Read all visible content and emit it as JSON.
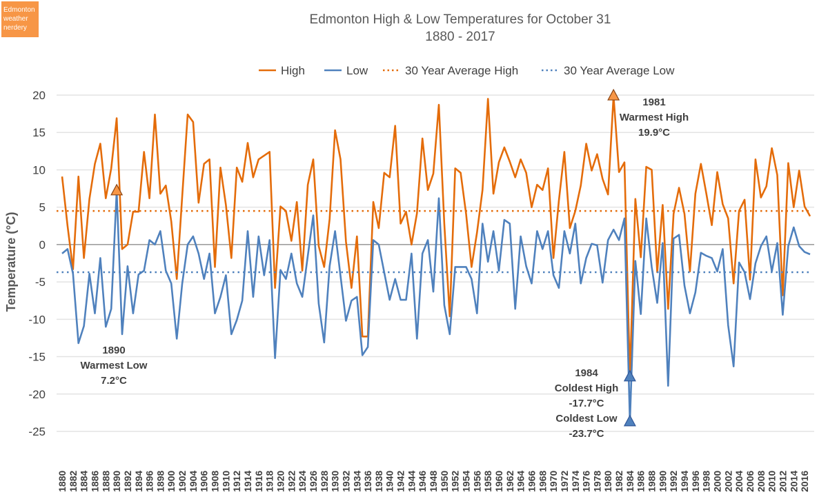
{
  "logo": {
    "text": "Edmonton weather nerdery",
    "color": "#F79646"
  },
  "chart_data": {
    "type": "line",
    "title": "Edmonton High & Low Temperatures for October 31",
    "subtitle": "1880 - 2017",
    "xlabel": "",
    "ylabel": "Temperature (°C)",
    "ylim": [
      -25,
      20
    ],
    "yticks": [
      20,
      15,
      10,
      5,
      0,
      -5,
      -10,
      -15,
      -20,
      -25
    ],
    "xlim": [
      1880,
      2017
    ],
    "xtick_step": 2,
    "grid": true,
    "legend_position": "top",
    "x_start": 1880,
    "series": [
      {
        "name": "High",
        "color": "#E46C0A",
        "style": "solid",
        "values": [
          9.1,
          2.5,
          -3.3,
          9.1,
          -1.8,
          6.1,
          10.8,
          13.5,
          6.2,
          10.2,
          16.9,
          -0.6,
          0,
          4.4,
          4.4,
          12.4,
          6.2,
          17.4,
          6.8,
          7.9,
          3.1,
          -4.6,
          6.5,
          17.4,
          16.4,
          5.6,
          10.8,
          11.4,
          -3.0,
          10.3,
          5.3,
          -1.8,
          10.3,
          8.4,
          13.6,
          9.0,
          11.4,
          11.9,
          12.4,
          -5.8,
          5.1,
          4.5,
          0.5,
          5.7,
          -3.5,
          8.0,
          11.4,
          -0.2,
          -3.0,
          3.4,
          15.3,
          11.4,
          0.4,
          -5.8,
          1.1,
          -12.3,
          -12.3,
          5.7,
          2.2,
          9.6,
          9.0,
          15.9,
          2.8,
          4.4,
          0,
          4.2,
          14.2,
          7.3,
          9.5,
          18.7,
          2.8,
          -9.6,
          10.2,
          9.6,
          4.1,
          -3.0,
          1.6,
          7.3,
          19.5,
          6.8,
          11.0,
          13.0,
          11.1,
          9.0,
          11.4,
          9.6,
          5.0,
          8.0,
          7.3,
          10.2,
          -1.8,
          5.9,
          12.4,
          2.2,
          4.5,
          7.9,
          13.5,
          9.9,
          12.1,
          8.8,
          6.7,
          19.9,
          9.7,
          11.0,
          -17.7,
          6.1,
          -1.7,
          10.4,
          10.0,
          -3.7,
          5.3,
          -8.6,
          4.1,
          7.6,
          4.1,
          -3.6,
          6.8,
          10.8,
          6.8,
          2.6,
          9.7,
          5.4,
          3.5,
          -5.2,
          4.5,
          6.0,
          -4.7,
          11.4,
          6.3,
          7.8,
          12.9,
          9.3,
          -6.8,
          10.9,
          5.0,
          9.9,
          5.1,
          3.8
        ]
      },
      {
        "name": "Low",
        "color": "#4F81BD",
        "style": "solid",
        "values": [
          -1.2,
          -0.6,
          -3.9,
          -13.2,
          -10.9,
          -3.9,
          -9.2,
          -1.8,
          -11.0,
          -8.6,
          7.2,
          -12.0,
          -2.9,
          -9.2,
          -4.0,
          -3.5,
          0.6,
          0,
          1.8,
          -3.5,
          -5.2,
          -12.6,
          -5.2,
          0,
          1.1,
          -1.2,
          -4.6,
          -1.2,
          -9.2,
          -7.0,
          -4.1,
          -12.0,
          -10.1,
          -7.5,
          1.8,
          -7.0,
          1.1,
          -4.1,
          0.6,
          -15.2,
          -3.4,
          -4.6,
          -1.2,
          -5.2,
          -7.0,
          -1.5,
          3.9,
          -7.9,
          -13.1,
          -2.9,
          1.8,
          -4.2,
          -10.2,
          -7.5,
          -7.0,
          -14.8,
          -13.7,
          0.6,
          0,
          -3.7,
          -7.4,
          -4.6,
          -7.4,
          -7.4,
          -1.2,
          -12.6,
          -1.2,
          0.6,
          -6.3,
          6.2,
          -8.1,
          -12.0,
          -3.0,
          -3.0,
          -3.0,
          -4.6,
          -9.2,
          2.8,
          -2.3,
          1.8,
          -3.5,
          3.3,
          2.8,
          -8.6,
          1.1,
          -2.9,
          -5.2,
          1.8,
          -0.6,
          1.8,
          -4.1,
          -5.8,
          1.8,
          -1.2,
          2.8,
          -5.2,
          -1.8,
          0.1,
          -0.1,
          -5.1,
          0.6,
          2.0,
          0.6,
          3.5,
          -23.7,
          -2.2,
          -9.3,
          3.5,
          -3.0,
          -7.8,
          0.2,
          -18.9,
          0.8,
          1.3,
          -5.5,
          -9.2,
          -6.4,
          -1.1,
          -1.5,
          -1.8,
          -3.6,
          -0.6,
          -10.8,
          -16.3,
          -2.4,
          -3.7,
          -7.3,
          -2.5,
          -0.2,
          1.1,
          -3.6,
          0.2,
          -9.4,
          -0.2,
          2.3,
          -0.2,
          -1.0,
          -1.3
        ]
      },
      {
        "name": "30 Year Average High",
        "color": "#E46C0A",
        "style": "dotted",
        "value": 4.5
      },
      {
        "name": "30 Year Average Low",
        "color": "#4F81BD",
        "style": "dotted",
        "value": -3.7
      }
    ],
    "annotations": [
      {
        "year": 1890,
        "series": "Low",
        "value": 7.2,
        "marker_color": "#F79646",
        "lines": [
          "1890",
          "Warmest Low",
          "7.2°C"
        ]
      },
      {
        "year": 1981,
        "series": "High",
        "value": 19.9,
        "marker_color": "#F79646",
        "lines": [
          "1981",
          "Warmest High",
          "19.9°C"
        ]
      },
      {
        "year": 1984,
        "series": "High",
        "value": -17.7,
        "marker_color": "#4F81BD",
        "lines": [
          "1984",
          "Coldest High",
          "-17.7°C"
        ]
      },
      {
        "year": 1984,
        "series": "Low",
        "value": -23.7,
        "marker_color": "#4F81BD",
        "lines": [
          "Coldest Low",
          "-23.7°C"
        ]
      }
    ]
  }
}
